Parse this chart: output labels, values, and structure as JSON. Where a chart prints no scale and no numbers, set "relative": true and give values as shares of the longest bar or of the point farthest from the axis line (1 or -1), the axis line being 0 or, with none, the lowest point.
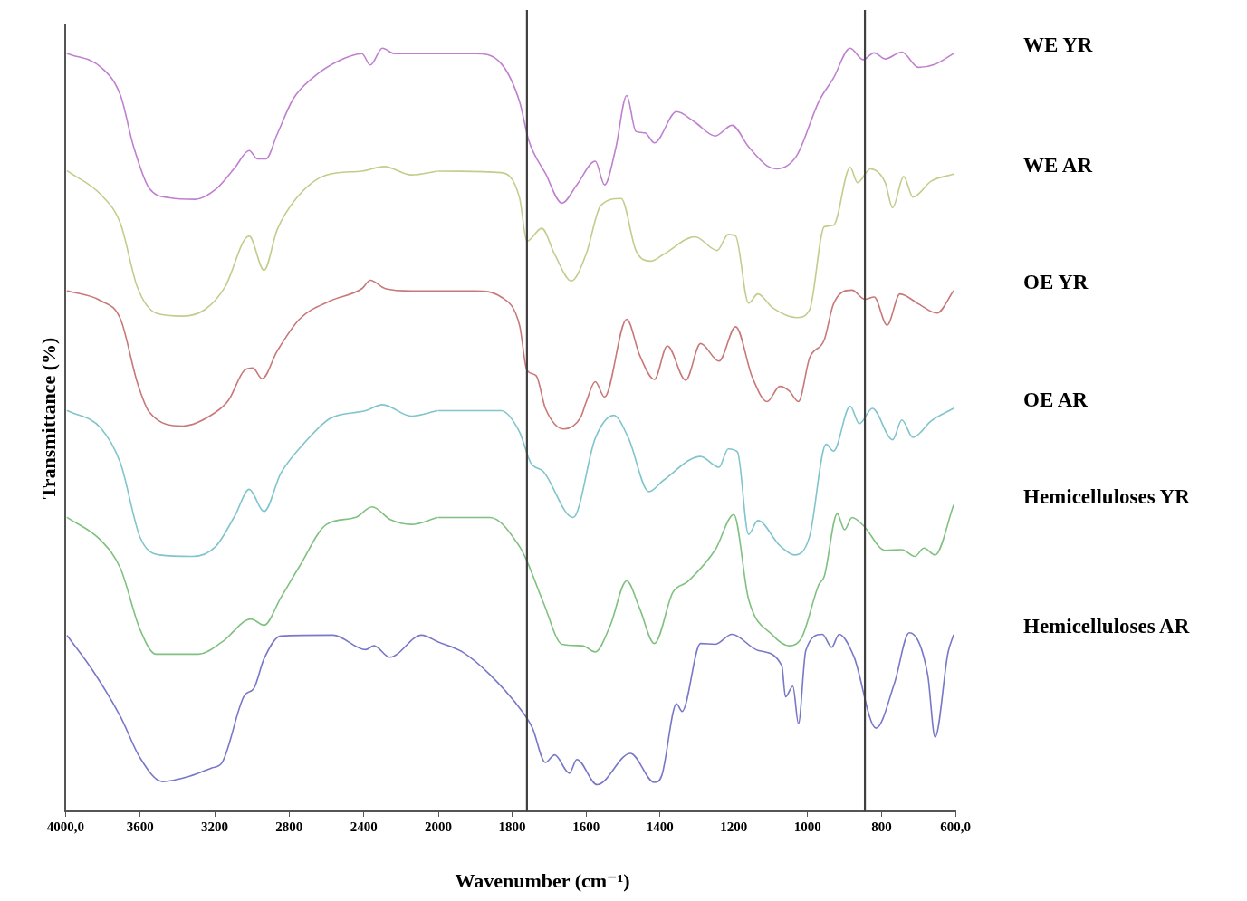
{
  "chart_data": [
    {
      "type": "line",
      "relative": true,
      "ylabel": "Transmittance (%)",
      "xlim": [
        4000,
        2000
      ],
      "xticks": [
        {
          "value": 4000,
          "label": "4000,0"
        },
        3600,
        3200,
        2800,
        2400,
        2000
      ],
      "marker": "none",
      "line_style": "solid",
      "series": [
        {
          "color": "#c080d0",
          "x": [
            3990,
            3810,
            3705,
            3635,
            3550,
            3440,
            3305,
            3195,
            3090,
            3015,
            2970,
            2925,
            2865,
            2780,
            2670,
            2530,
            2410,
            2365,
            2300,
            2235,
            2000
          ],
          "values": [
            0.993,
            0.975,
            0.938,
            0.871,
            0.816,
            0.804,
            0.802,
            0.815,
            0.844,
            0.866,
            0.855,
            0.855,
            0.887,
            0.933,
            0.962,
            0.984,
            0.993,
            0.978,
            1.0,
            0.993,
            0.993
          ]
        },
        {
          "color": "#c4cc8c",
          "x": [
            3990,
            3810,
            3705,
            3615,
            3515,
            3370,
            3250,
            3145,
            3015,
            2935,
            2865,
            2760,
            2600,
            2410,
            2290,
            2145,
            2005
          ],
          "values": [
            0.839,
            0.808,
            0.77,
            0.687,
            0.653,
            0.649,
            0.658,
            0.687,
            0.754,
            0.709,
            0.762,
            0.804,
            0.834,
            0.839,
            0.845,
            0.834,
            0.839
          ]
        },
        {
          "color": "#c87878",
          "x": [
            3990,
            3810,
            3705,
            3615,
            3550,
            3370,
            3195,
            3125,
            3040,
            2995,
            2945,
            2865,
            2745,
            2580,
            2410,
            2365,
            2285,
            2145,
            2000
          ],
          "values": [
            0.682,
            0.669,
            0.645,
            0.562,
            0.523,
            0.505,
            0.523,
            0.539,
            0.578,
            0.581,
            0.567,
            0.603,
            0.645,
            0.669,
            0.685,
            0.696,
            0.685,
            0.682,
            0.682
          ]
        },
        {
          "color": "#80c4cc",
          "x": [
            3990,
            3810,
            3705,
            3600,
            3495,
            3320,
            3195,
            3090,
            3015,
            2935,
            2845,
            2725,
            2580,
            2390,
            2300,
            2145,
            2005
          ],
          "values": [
            0.525,
            0.502,
            0.456,
            0.359,
            0.336,
            0.334,
            0.347,
            0.388,
            0.422,
            0.393,
            0.443,
            0.481,
            0.515,
            0.525,
            0.533,
            0.518,
            0.525
          ]
        },
        {
          "color": "#80c080",
          "x": [
            3990,
            3810,
            3705,
            3600,
            3515,
            3285,
            3160,
            3005,
            2935,
            2845,
            2745,
            2600,
            2445,
            2355,
            2255,
            2145,
            2005
          ],
          "values": [
            0.385,
            0.355,
            0.318,
            0.238,
            0.206,
            0.206,
            0.222,
            0.252,
            0.244,
            0.28,
            0.321,
            0.376,
            0.385,
            0.399,
            0.382,
            0.376,
            0.385
          ]
        },
        {
          "color": "#7878c8",
          "x": [
            3990,
            3850,
            3705,
            3600,
            3480,
            3335,
            3215,
            3160,
            3040,
            2990,
            2935,
            2845,
            2565,
            2390,
            2345,
            2260,
            2090,
            2000
          ],
          "values": [
            0.23,
            0.183,
            0.124,
            0.07,
            0.039,
            0.046,
            0.057,
            0.064,
            0.152,
            0.161,
            0.2,
            0.23,
            0.231,
            0.212,
            0.217,
            0.202,
            0.231,
            0.222
          ]
        }
      ]
    },
    {
      "type": "line",
      "relative": true,
      "xlabel": "Wavenumber (cm⁻¹)",
      "xlim": [
        2000,
        600
      ],
      "xticks": [
        {
          "value": 2000,
          "label": null
        },
        1800,
        1600,
        1400,
        1200,
        1000,
        800,
        {
          "value": 600,
          "label": "600,0"
        }
      ],
      "marker": "none",
      "line_style": "solid",
      "ref_lines": [
        {
          "axis": "x",
          "value": 1760,
          "color": "#404040"
        },
        {
          "axis": "x",
          "value": 845,
          "color": "#404040"
        }
      ],
      "series": [
        {
          "name": "WE YR",
          "color": "#c080d0",
          "x": [
            2000,
            1900,
            1830,
            1780,
            1755,
            1710,
            1665,
            1625,
            1575,
            1550,
            1520,
            1490,
            1465,
            1440,
            1415,
            1355,
            1305,
            1250,
            1205,
            1160,
            1110,
            1085,
            1030,
            970,
            930,
            885,
            850,
            820,
            790,
            745,
            700,
            655,
            605
          ],
          "values": [
            0.993,
            0.993,
            0.98,
            0.93,
            0.879,
            0.836,
            0.797,
            0.821,
            0.852,
            0.821,
            0.868,
            0.938,
            0.891,
            0.889,
            0.876,
            0.917,
            0.903,
            0.885,
            0.899,
            0.871,
            0.846,
            0.842,
            0.859,
            0.93,
            0.961,
            1.0,
            0.985,
            0.994,
            0.986,
            0.995,
            0.975,
            0.979,
            0.993
          ]
        },
        {
          "name": "WE AR",
          "color": "#c4cc8c",
          "x": [
            2000,
            1830,
            1780,
            1760,
            1720,
            1685,
            1640,
            1600,
            1560,
            1505,
            1465,
            1425,
            1390,
            1305,
            1245,
            1215,
            1195,
            1160,
            1135,
            1095,
            1030,
            995,
            955,
            930,
            885,
            865,
            830,
            790,
            770,
            740,
            715,
            665,
            605
          ],
          "values": [
            0.839,
            0.837,
            0.804,
            0.747,
            0.764,
            0.73,
            0.695,
            0.73,
            0.794,
            0.803,
            0.735,
            0.721,
            0.73,
            0.753,
            0.735,
            0.756,
            0.754,
            0.666,
            0.678,
            0.66,
            0.647,
            0.657,
            0.766,
            0.768,
            0.844,
            0.824,
            0.842,
            0.824,
            0.791,
            0.832,
            0.805,
            0.826,
            0.835
          ]
        },
        {
          "name": "OE YR",
          "color": "#c87878",
          "x": [
            2000,
            1900,
            1830,
            1780,
            1760,
            1735,
            1710,
            1660,
            1615,
            1600,
            1575,
            1550,
            1490,
            1455,
            1415,
            1380,
            1330,
            1290,
            1240,
            1195,
            1150,
            1110,
            1075,
            1050,
            1025,
            995,
            955,
            930,
            880,
            845,
            820,
            785,
            750,
            700,
            650,
            605
          ],
          "values": [
            0.682,
            0.682,
            0.674,
            0.637,
            0.578,
            0.571,
            0.528,
            0.501,
            0.516,
            0.536,
            0.563,
            0.543,
            0.645,
            0.598,
            0.566,
            0.61,
            0.565,
            0.613,
            0.59,
            0.635,
            0.569,
            0.537,
            0.557,
            0.551,
            0.537,
            0.594,
            0.618,
            0.665,
            0.683,
            0.671,
            0.674,
            0.637,
            0.678,
            0.665,
            0.653,
            0.682
          ]
        },
        {
          "name": "OE AR",
          "color": "#80c4cc",
          "x": [
            2000,
            1830,
            1780,
            1750,
            1715,
            1635,
            1575,
            1525,
            1485,
            1430,
            1390,
            1290,
            1240,
            1215,
            1190,
            1160,
            1135,
            1075,
            1035,
            995,
            950,
            930,
            885,
            860,
            825,
            770,
            745,
            715,
            665,
            605
          ],
          "values": [
            0.525,
            0.525,
            0.497,
            0.457,
            0.445,
            0.385,
            0.489,
            0.519,
            0.489,
            0.419,
            0.434,
            0.465,
            0.451,
            0.475,
            0.471,
            0.363,
            0.381,
            0.348,
            0.336,
            0.36,
            0.481,
            0.472,
            0.531,
            0.508,
            0.528,
            0.487,
            0.513,
            0.49,
            0.512,
            0.528
          ]
        },
        {
          "name": "Hemicelluloses YR",
          "color": "#80c080",
          "x": [
            2000,
            1860,
            1780,
            1760,
            1715,
            1665,
            1610,
            1575,
            1535,
            1490,
            1455,
            1415,
            1365,
            1325,
            1250,
            1200,
            1160,
            1095,
            1050,
            1015,
            970,
            955,
            920,
            900,
            880,
            850,
            790,
            745,
            710,
            685,
            655,
            605
          ],
          "values": [
            0.385,
            0.385,
            0.347,
            0.328,
            0.273,
            0.219,
            0.217,
            0.209,
            0.243,
            0.302,
            0.266,
            0.22,
            0.287,
            0.301,
            0.343,
            0.389,
            0.278,
            0.231,
            0.217,
            0.229,
            0.297,
            0.308,
            0.39,
            0.369,
            0.385,
            0.375,
            0.342,
            0.343,
            0.334,
            0.345,
            0.336,
            0.401
          ]
        },
        {
          "name": "Hemicelluloses AR",
          "color": "#7878c8",
          "x": [
            2000,
            1935,
            1860,
            1770,
            1745,
            1710,
            1685,
            1645,
            1625,
            1570,
            1480,
            1415,
            1395,
            1355,
            1340,
            1290,
            1250,
            1205,
            1135,
            1070,
            1060,
            1040,
            1025,
            1005,
            960,
            935,
            915,
            875,
            815,
            765,
            725,
            675,
            655,
            620,
            605
          ],
          "values": [
            0.222,
            0.209,
            0.179,
            0.129,
            0.109,
            0.064,
            0.074,
            0.05,
            0.068,
            0.035,
            0.076,
            0.038,
            0.047,
            0.141,
            0.131,
            0.22,
            0.219,
            0.232,
            0.211,
            0.191,
            0.15,
            0.164,
            0.115,
            0.211,
            0.232,
            0.215,
            0.232,
            0.203,
            0.109,
            0.168,
            0.234,
            0.179,
            0.097,
            0.208,
            0.231
          ]
        }
      ]
    }
  ]
}
